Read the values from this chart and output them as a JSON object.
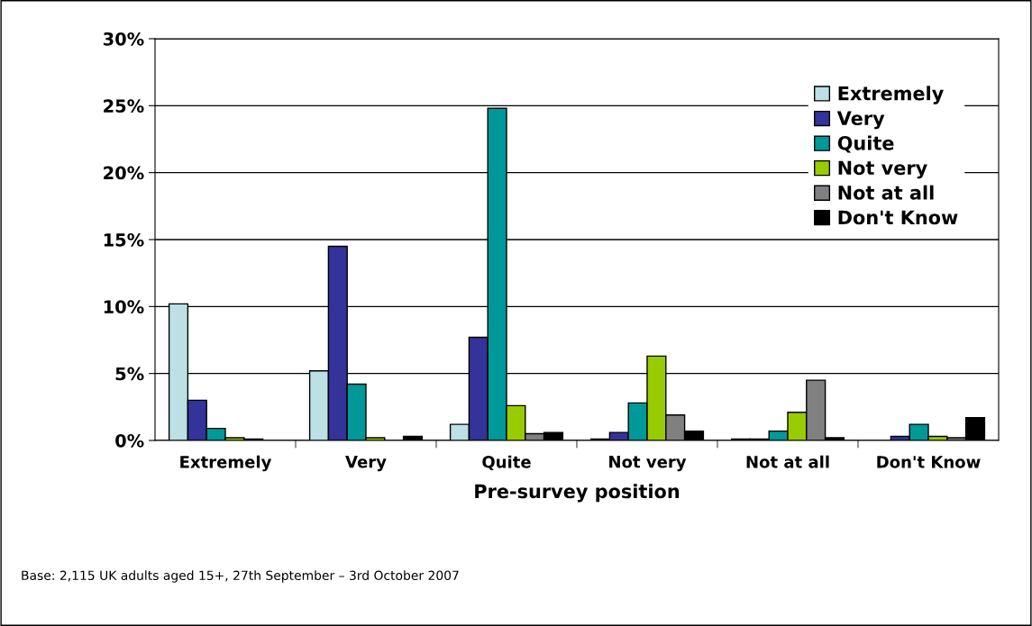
{
  "chart_data": {
    "type": "bar",
    "xlabel": "Pre-survey position",
    "categories": [
      "Extremely",
      "Very",
      "Quite",
      "Not very",
      "Not at all",
      "Don't Know"
    ],
    "series": [
      {
        "name": "Extremely",
        "color": "#bce0e4",
        "values": [
          10.2,
          5.2,
          1.2,
          0.1,
          0.1,
          null
        ]
      },
      {
        "name": "Very",
        "color": "#333399",
        "values": [
          3.0,
          14.5,
          7.7,
          0.6,
          0.1,
          0.3
        ]
      },
      {
        "name": "Quite",
        "color": "#009999",
        "values": [
          0.9,
          4.2,
          24.8,
          2.8,
          0.7,
          1.2
        ]
      },
      {
        "name": "Not very",
        "color": "#99cc00",
        "values": [
          0.2,
          0.2,
          2.6,
          6.3,
          2.1,
          0.3
        ]
      },
      {
        "name": "Not at all",
        "color": "#808080",
        "values": [
          0.1,
          null,
          0.5,
          1.9,
          4.5,
          0.2
        ]
      },
      {
        "name": "Don't Know",
        "color": "#000000",
        "values": [
          null,
          0.3,
          0.6,
          0.7,
          0.2,
          1.7
        ]
      }
    ],
    "ylim": [
      0,
      30
    ],
    "yticks": [
      {
        "value": 0,
        "label": "0%"
      },
      {
        "value": 5,
        "label": "5%"
      },
      {
        "value": 10,
        "label": "10%"
      },
      {
        "value": 15,
        "label": "15%"
      },
      {
        "value": 20,
        "label": "20%"
      },
      {
        "value": 25,
        "label": "25%"
      },
      {
        "value": 30,
        "label": "30%"
      }
    ],
    "grid": "y",
    "legend": "top right",
    "annotations": [
      "Base: 2,115 UK adults aged 15+, 27th September – 3rd October 2007"
    ]
  }
}
